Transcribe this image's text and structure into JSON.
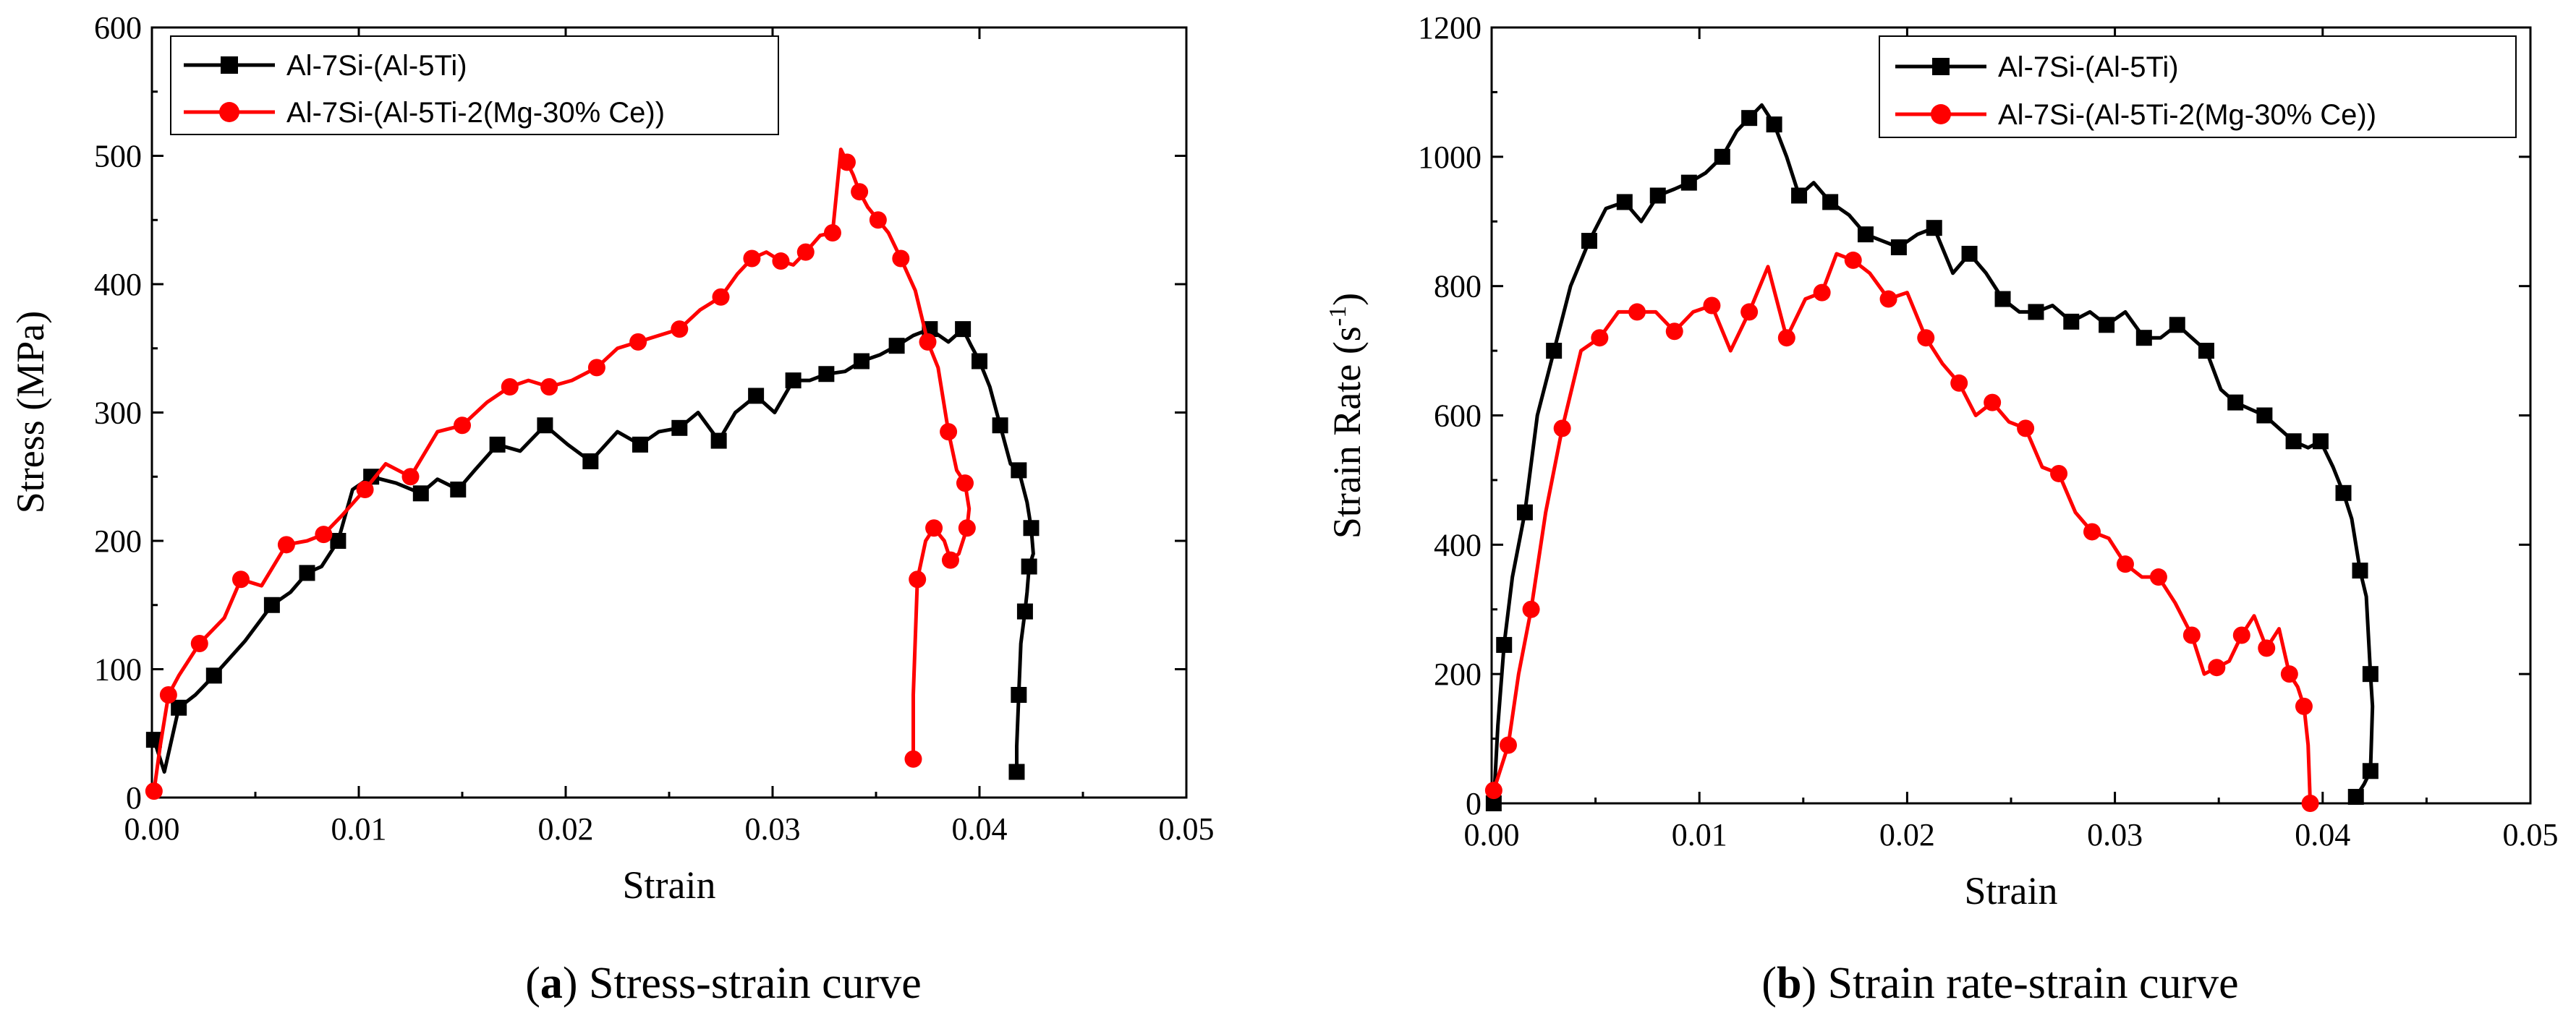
{
  "chart_data": [
    {
      "type": "line",
      "caption_letter": "a",
      "caption_open": "(",
      "caption_close": ")",
      "caption_text": " Stress-strain curve",
      "xlabel": "Strain",
      "ylabel": "Stress (MPa)",
      "xlim": [
        0,
        0.05
      ],
      "ylim": [
        0,
        600
      ],
      "xticks": [
        0,
        0.01,
        0.02,
        0.03,
        0.04,
        0.05
      ],
      "xtick_labels": [
        "0.00",
        "0.01",
        "0.02",
        "0.03",
        "0.04",
        "0.05"
      ],
      "yticks": [
        0,
        100,
        200,
        300,
        400,
        500,
        600
      ],
      "ytick_labels": [
        "0",
        "100",
        "200",
        "300",
        "400",
        "500",
        "600"
      ],
      "legend_position": "top-left",
      "series": [
        {
          "name": "Al-7Si-(Al-5Ti)",
          "color": "#000000",
          "marker": "square",
          "x": [
            0.0001,
            0.0006,
            0.0013,
            0.0021,
            0.003,
            0.0045,
            0.0058,
            0.0067,
            0.0075,
            0.0082,
            0.009,
            0.0097,
            0.0106,
            0.0118,
            0.013,
            0.0138,
            0.0148,
            0.0156,
            0.0167,
            0.0178,
            0.019,
            0.0201,
            0.0212,
            0.0225,
            0.0236,
            0.0245,
            0.0255,
            0.0264,
            0.0274,
            0.0282,
            0.0292,
            0.0301,
            0.031,
            0.0318,
            0.0326,
            0.0335,
            0.0343,
            0.0352,
            0.036,
            0.0368,
            0.0376,
            0.0385,
            0.0392,
            0.0396,
            0.04,
            0.0405,
            0.041,
            0.0415,
            0.0419,
            0.0423,
            0.0425,
            0.0426,
            0.0424,
            0.0423,
            0.0422,
            0.042,
            0.0419,
            0.0418,
            0.0418
          ],
          "y": [
            45,
            20,
            70,
            80,
            95,
            122,
            150,
            160,
            175,
            180,
            200,
            240,
            250,
            245,
            237,
            248,
            240,
            255,
            275,
            270,
            290,
            275,
            262,
            285,
            275,
            285,
            288,
            300,
            278,
            300,
            313,
            300,
            325,
            325,
            330,
            332,
            340,
            345,
            352,
            360,
            365,
            355,
            365,
            352,
            340,
            320,
            290,
            260,
            255,
            230,
            210,
            190,
            180,
            160,
            145,
            120,
            80,
            40,
            20
          ]
        },
        {
          "name": "Al-7Si-(Al-5Ti-2(Mg-30% Ce))",
          "color": "#ff0000",
          "marker": "circle",
          "x": [
            0.0001,
            0.0004,
            0.0008,
            0.0013,
            0.0023,
            0.0035,
            0.0043,
            0.0053,
            0.0065,
            0.0075,
            0.0083,
            0.0092,
            0.0103,
            0.0113,
            0.0125,
            0.0138,
            0.015,
            0.0162,
            0.0173,
            0.0182,
            0.0192,
            0.0203,
            0.0215,
            0.0225,
            0.0235,
            0.0245,
            0.0255,
            0.0265,
            0.0275,
            0.0283,
            0.029,
            0.0297,
            0.0304,
            0.031,
            0.0316,
            0.0323,
            0.0329,
            0.0333,
            0.0336,
            0.0339,
            0.0342,
            0.0346,
            0.0351,
            0.0356,
            0.0362,
            0.0369,
            0.0375,
            0.038,
            0.0385,
            0.0389,
            0.0393,
            0.0395,
            0.0394,
            0.039,
            0.0386,
            0.0383,
            0.0378,
            0.0374,
            0.037,
            0.0368,
            0.0368
          ],
          "y": [
            5,
            40,
            80,
            95,
            120,
            140,
            170,
            165,
            197,
            200,
            205,
            220,
            240,
            260,
            250,
            285,
            290,
            308,
            320,
            325,
            320,
            325,
            335,
            350,
            355,
            360,
            365,
            380,
            390,
            408,
            420,
            425,
            418,
            415,
            425,
            438,
            440,
            505,
            495,
            485,
            472,
            460,
            450,
            440,
            420,
            395,
            355,
            335,
            285,
            255,
            245,
            225,
            210,
            190,
            185,
            200,
            210,
            200,
            170,
            80,
            30
          ]
        }
      ]
    },
    {
      "type": "line",
      "caption_letter": "b",
      "caption_open": "(",
      "caption_close": ")",
      "caption_text": " Strain rate-strain curve",
      "xlabel": "Strain",
      "ylabel": "Strain Rate (s",
      "ylabel_sup": "-1",
      "ylabel_end": ")",
      "xlim": [
        0,
        0.05
      ],
      "ylim": [
        0,
        1200
      ],
      "xticks": [
        0,
        0.01,
        0.02,
        0.03,
        0.04,
        0.05
      ],
      "xtick_labels": [
        "0.00",
        "0.01",
        "0.02",
        "0.03",
        "0.04",
        "0.05"
      ],
      "yticks": [
        0,
        200,
        400,
        600,
        800,
        1000,
        1200
      ],
      "ytick_labels": [
        "0",
        "200",
        "400",
        "600",
        "800",
        "1000",
        "1200"
      ],
      "legend_position": "top-right",
      "series": [
        {
          "name": "Al-7Si-(Al-5Ti)",
          "color": "#000000",
          "marker": "square",
          "x": [
            0.0001,
            0.0003,
            0.0006,
            0.001,
            0.0016,
            0.0022,
            0.003,
            0.0038,
            0.0047,
            0.0055,
            0.0064,
            0.0072,
            0.008,
            0.0088,
            0.0095,
            0.0103,
            0.0111,
            0.0118,
            0.0124,
            0.013,
            0.0136,
            0.0142,
            0.0148,
            0.0155,
            0.0163,
            0.0172,
            0.018,
            0.0188,
            0.0196,
            0.0205,
            0.0213,
            0.0222,
            0.023,
            0.0238,
            0.0246,
            0.0254,
            0.0262,
            0.027,
            0.0279,
            0.0288,
            0.0296,
            0.0305,
            0.0314,
            0.0322,
            0.033,
            0.0337,
            0.0344,
            0.0351,
            0.0358,
            0.0365,
            0.0372,
            0.0379,
            0.0386,
            0.0393,
            0.0399,
            0.0405,
            0.041,
            0.0414,
            0.0418,
            0.0421,
            0.0423,
            0.0424,
            0.0423,
            0.042,
            0.0416
          ],
          "y": [
            0,
            120,
            245,
            350,
            450,
            600,
            700,
            800,
            870,
            920,
            930,
            900,
            940,
            950,
            960,
            975,
            1000,
            1040,
            1060,
            1080,
            1050,
            1000,
            940,
            960,
            930,
            910,
            880,
            870,
            860,
            880,
            890,
            820,
            850,
            820,
            780,
            760,
            760,
            770,
            745,
            760,
            740,
            760,
            720,
            720,
            740,
            720,
            700,
            640,
            620,
            610,
            600,
            580,
            560,
            550,
            560,
            520,
            480,
            440,
            360,
            320,
            200,
            150,
            50,
            30,
            10
          ]
        },
        {
          "name": "Al-7Si-(Al-5Ti-2(Mg-30% Ce))",
          "color": "#ff0000",
          "marker": "circle",
          "x": [
            0.0001,
            0.0004,
            0.0008,
            0.0013,
            0.0019,
            0.0026,
            0.0034,
            0.0043,
            0.0052,
            0.0061,
            0.007,
            0.0079,
            0.0088,
            0.0097,
            0.0106,
            0.0115,
            0.0124,
            0.0133,
            0.0142,
            0.0151,
            0.0159,
            0.0166,
            0.0174,
            0.0182,
            0.0191,
            0.02,
            0.0209,
            0.0217,
            0.0225,
            0.0233,
            0.0241,
            0.0249,
            0.0257,
            0.0265,
            0.0273,
            0.0281,
            0.0289,
            0.0297,
            0.0305,
            0.0313,
            0.0321,
            0.0329,
            0.0337,
            0.0343,
            0.0349,
            0.0355,
            0.0361,
            0.0367,
            0.0373,
            0.0379,
            0.0384,
            0.0388,
            0.0391,
            0.0393,
            0.0394
          ],
          "y": [
            20,
            50,
            90,
            200,
            300,
            450,
            580,
            700,
            720,
            760,
            760,
            760,
            730,
            760,
            770,
            700,
            760,
            830,
            720,
            780,
            790,
            850,
            840,
            820,
            780,
            790,
            720,
            680,
            650,
            600,
            620,
            590,
            580,
            520,
            510,
            450,
            420,
            410,
            370,
            350,
            350,
            310,
            260,
            200,
            210,
            220,
            260,
            290,
            240,
            270,
            200,
            180,
            150,
            90,
            0
          ]
        }
      ]
    }
  ]
}
